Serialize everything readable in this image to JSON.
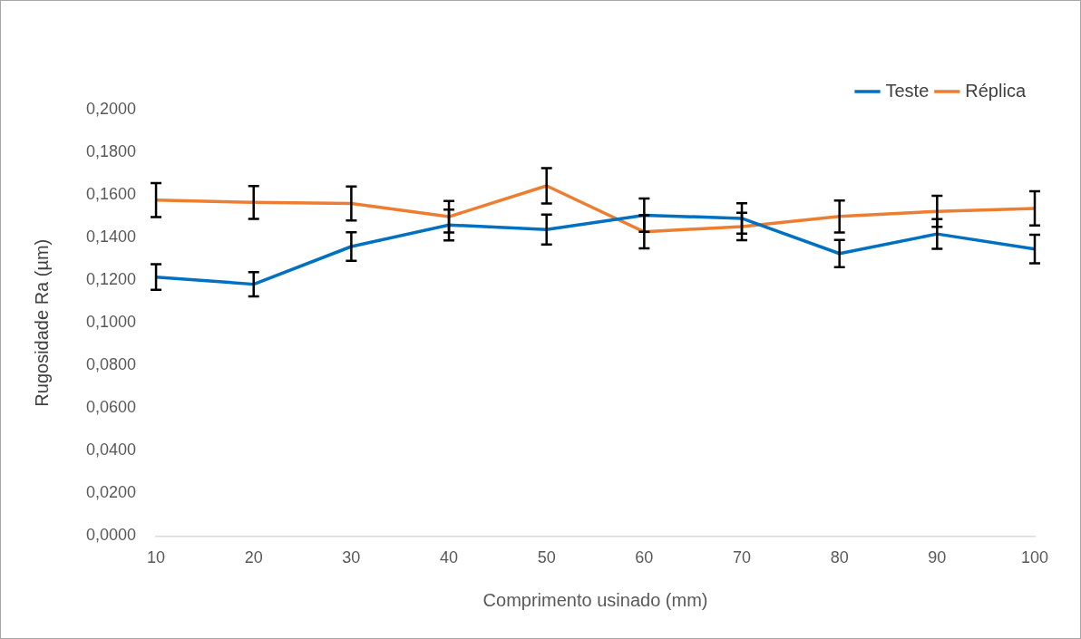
{
  "chart_data": {
    "type": "line",
    "xlabel": "Comprimento usinado (mm)",
    "ylabel": "Rugosidade Ra (µm)",
    "categories": [
      "10",
      "20",
      "30",
      "40",
      "50",
      "60",
      "70",
      "80",
      "90",
      "100"
    ],
    "series": [
      {
        "name": "Teste",
        "color": "#0070c0",
        "values": [
          0.1215,
          0.1181,
          0.1358,
          0.1459,
          0.1438,
          0.1505,
          0.149,
          0.1325,
          0.1417,
          0.1346
        ],
        "errors": [
          0.006,
          0.0057,
          0.0067,
          0.0072,
          0.007,
          0.0078,
          0.0071,
          0.0064,
          0.007,
          0.0067
        ]
      },
      {
        "name": "Réplica",
        "color": "#ed7d31",
        "values": [
          0.1576,
          0.1565,
          0.156,
          0.1498,
          0.1643,
          0.1427,
          0.1452,
          0.1499,
          0.1523,
          0.1537
        ],
        "errors": [
          0.008,
          0.0077,
          0.008,
          0.0074,
          0.0083,
          0.0078,
          0.0064,
          0.0075,
          0.0073,
          0.008
        ]
      }
    ],
    "ylim": [
      0,
      0.2
    ],
    "yticks": [
      {
        "value": 0,
        "label": "0,0000"
      },
      {
        "value": 0.02,
        "label": "0,0200"
      },
      {
        "value": 0.04,
        "label": "0,0400"
      },
      {
        "value": 0.06,
        "label": "0,0600"
      },
      {
        "value": 0.08,
        "label": "0,0800"
      },
      {
        "value": 0.1,
        "label": "0,1000"
      },
      {
        "value": 0.12,
        "label": "0,1200"
      },
      {
        "value": 0.14,
        "label": "0,1400"
      },
      {
        "value": 0.16,
        "label": "0,1600"
      },
      {
        "value": 0.18,
        "label": "0,1800"
      },
      {
        "value": 0.2,
        "label": "0,2000"
      }
    ],
    "legend": "top right",
    "marker": "none"
  }
}
